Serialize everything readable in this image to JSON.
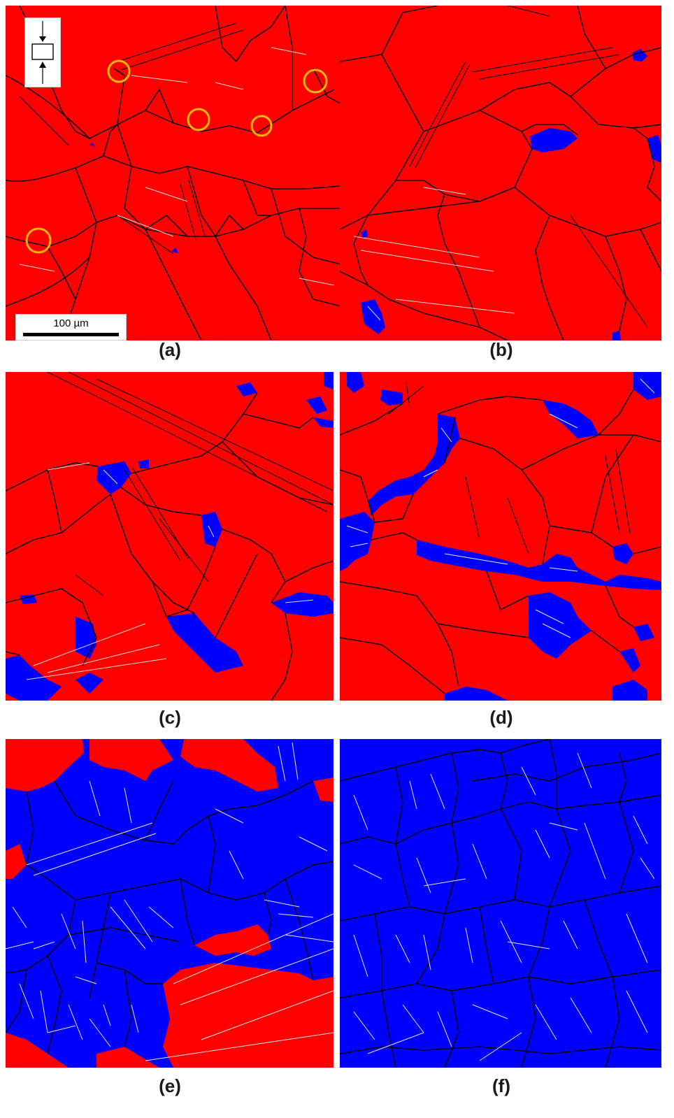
{
  "colors": {
    "austenite": "#ff0000",
    "martensite": "#0000ff",
    "grain_boundary": "#000000",
    "twin_boundary": "#ffffff",
    "marker": "#f5b800"
  },
  "scale_bar": {
    "label": "100 µm"
  },
  "icons": {
    "load_direction": "compression-arrows-icon"
  },
  "panels": [
    {
      "id": "a",
      "caption": "(a)"
    },
    {
      "id": "b",
      "caption": "(b)"
    },
    {
      "id": "c",
      "caption": "(c)"
    },
    {
      "id": "d",
      "caption": "(d)"
    },
    {
      "id": "e",
      "caption": "(e)"
    },
    {
      "id": "f",
      "caption": "(f)"
    }
  ]
}
